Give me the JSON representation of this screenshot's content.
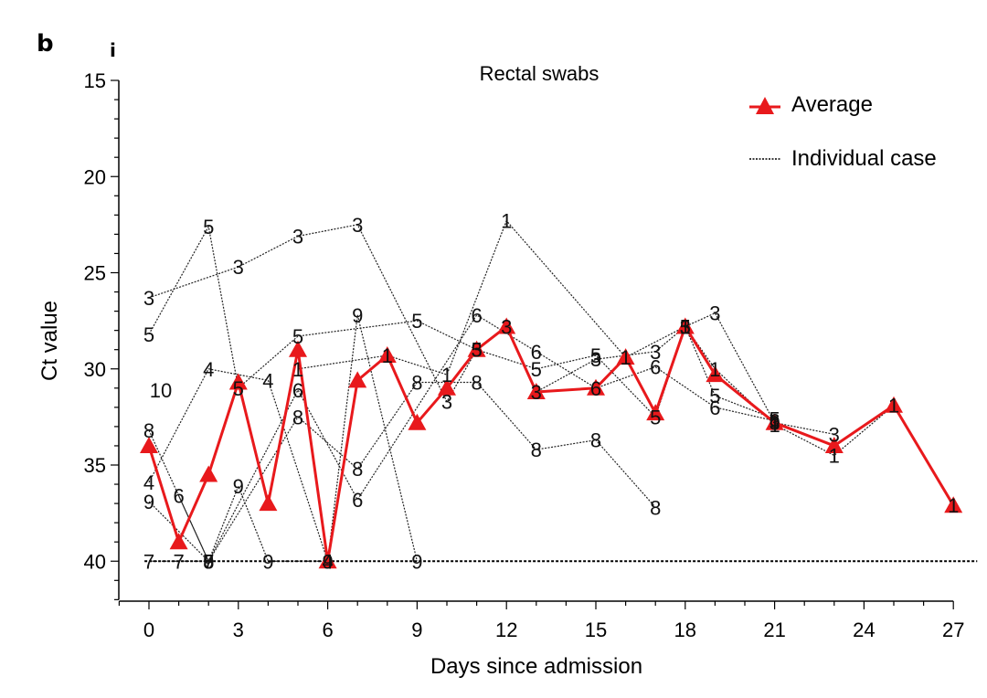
{
  "panel_letter": "b",
  "sub_letter": "i",
  "chart_data": {
    "type": "line",
    "title": "Rectal swabs",
    "xlabel": "Days since admission",
    "ylabel": "Ct value",
    "xlim": [
      -1,
      27
    ],
    "ylim": [
      42,
      15
    ],
    "y_inverted": true,
    "x_ticks": [
      0,
      3,
      6,
      9,
      12,
      15,
      18,
      21,
      24,
      27
    ],
    "y_ticks": [
      15,
      20,
      25,
      30,
      35,
      40
    ],
    "detection_limit": 40,
    "legend": {
      "position": "top-right",
      "entries": [
        {
          "label": "Average",
          "style": "red-line-triangle"
        },
        {
          "label": "Individual case",
          "style": "dotted"
        }
      ]
    },
    "colors": {
      "average": "#e8191c",
      "individual": "#222222",
      "axis": "#000000"
    },
    "average": {
      "name": "Average",
      "points": [
        [
          0,
          34
        ],
        [
          1,
          39
        ],
        [
          2,
          35.5
        ],
        [
          3,
          30.7
        ],
        [
          4,
          37
        ],
        [
          5,
          29
        ],
        [
          6,
          40
        ],
        [
          7,
          30.6
        ],
        [
          8,
          29.3
        ],
        [
          9,
          32.8
        ],
        [
          10,
          31
        ],
        [
          11,
          29
        ],
        [
          12,
          27.8
        ],
        [
          13,
          31.2
        ],
        [
          15,
          31
        ],
        [
          16,
          29.4
        ],
        [
          17,
          32.3
        ],
        [
          18,
          27.8
        ],
        [
          19,
          30.3
        ],
        [
          21,
          32.8
        ],
        [
          23,
          34
        ],
        [
          25,
          31.9
        ],
        [
          27,
          37.1
        ]
      ]
    },
    "series": [
      {
        "name": "1",
        "points": [
          [
            5,
            30
          ],
          [
            8,
            29.3
          ],
          [
            10,
            30.3
          ],
          [
            12,
            22.3
          ],
          [
            16,
            29.4
          ],
          [
            18,
            27.8
          ],
          [
            19,
            30
          ],
          [
            21,
            32.9
          ],
          [
            23,
            34.5
          ],
          [
            25,
            31.9
          ],
          [
            27,
            37.1
          ]
        ]
      },
      {
        "name": "3",
        "points": [
          [
            0,
            26.3
          ],
          [
            3,
            24.7
          ],
          [
            5,
            23.1
          ],
          [
            7,
            22.5
          ],
          [
            10,
            31.7
          ],
          [
            11,
            29
          ],
          [
            12,
            27.8
          ],
          [
            13,
            31.2
          ],
          [
            15,
            29.5
          ],
          [
            17,
            29.1
          ],
          [
            18,
            27.8
          ],
          [
            19,
            27.1
          ],
          [
            21,
            32.8
          ],
          [
            23,
            33.4
          ]
        ]
      },
      {
        "name": "4",
        "points": [
          [
            0,
            35.9
          ],
          [
            2,
            30
          ],
          [
            4,
            30.6
          ],
          [
            6,
            40
          ]
        ]
      },
      {
        "name": "5",
        "points": [
          [
            0,
            28.2
          ],
          [
            2,
            22.6
          ],
          [
            3,
            31
          ],
          [
            5,
            28.3
          ],
          [
            9,
            27.5
          ],
          [
            11,
            29
          ],
          [
            13,
            30
          ],
          [
            15,
            29.3
          ],
          [
            17,
            32.5
          ],
          [
            18,
            27.8
          ],
          [
            19,
            31.4
          ],
          [
            21,
            32.6
          ]
        ]
      },
      {
        "name": "6",
        "points": [
          [
            1,
            36.6
          ],
          [
            2,
            40
          ],
          [
            5,
            31.1
          ],
          [
            7,
            36.8
          ],
          [
            11,
            27.2
          ],
          [
            13,
            29.1
          ],
          [
            15,
            31
          ],
          [
            17,
            29.9
          ],
          [
            19,
            32
          ],
          [
            21,
            32.7
          ]
        ]
      },
      {
        "name": "7",
        "points": [
          [
            0,
            40
          ],
          [
            1,
            40
          ],
          [
            2,
            40
          ]
        ]
      },
      {
        "name": "8",
        "points": [
          [
            0,
            33.2
          ],
          [
            2,
            40
          ],
          [
            5,
            32.5
          ],
          [
            7,
            35.2
          ],
          [
            9,
            30.7
          ],
          [
            11,
            30.7
          ],
          [
            13,
            34.2
          ],
          [
            15,
            33.7
          ],
          [
            17,
            37.2
          ]
        ]
      },
      {
        "name": "9",
        "points": [
          [
            0,
            36.9
          ],
          [
            2,
            40
          ],
          [
            3,
            36.1
          ],
          [
            4,
            40
          ],
          [
            6,
            40
          ],
          [
            7,
            27.2
          ],
          [
            9,
            40
          ]
        ]
      },
      {
        "name": "10",
        "points": [
          [
            0.4,
            31.1
          ]
        ]
      }
    ]
  }
}
